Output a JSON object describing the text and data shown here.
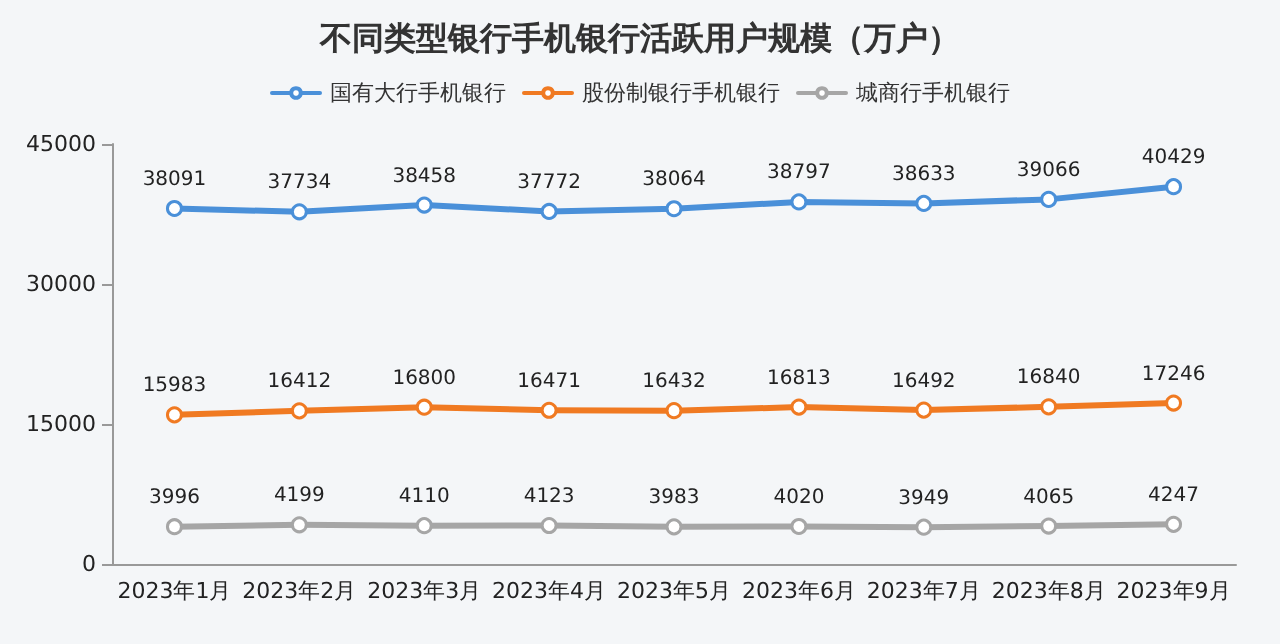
{
  "chart_data": {
    "type": "line",
    "title": "不同类型银行手机银行活跃用户规模（万户）",
    "categories": [
      "2023年1月",
      "2023年2月",
      "2023年3月",
      "2023年4月",
      "2023年5月",
      "2023年6月",
      "2023年7月",
      "2023年8月",
      "2023年9月"
    ],
    "series": [
      {
        "name": "国有大行手机银行",
        "color": "#4a90d9",
        "values": [
          38091,
          37734,
          38458,
          37772,
          38064,
          38797,
          38633,
          39066,
          40429
        ]
      },
      {
        "name": "股份制银行手机银行",
        "color": "#f07a22",
        "values": [
          15983,
          16412,
          16800,
          16471,
          16432,
          16813,
          16492,
          16840,
          17246
        ]
      },
      {
        "name": "城商行手机银行",
        "color": "#a6a6a6",
        "values": [
          3996,
          4199,
          4110,
          4123,
          3983,
          4020,
          3949,
          4065,
          4247
        ]
      }
    ],
    "ylim": [
      0,
      45000
    ],
    "yticks": [
      0,
      15000,
      30000,
      45000
    ],
    "grid": false,
    "legend": "top",
    "marker": "circle",
    "line_style": "solid",
    "data_labels": true
  }
}
